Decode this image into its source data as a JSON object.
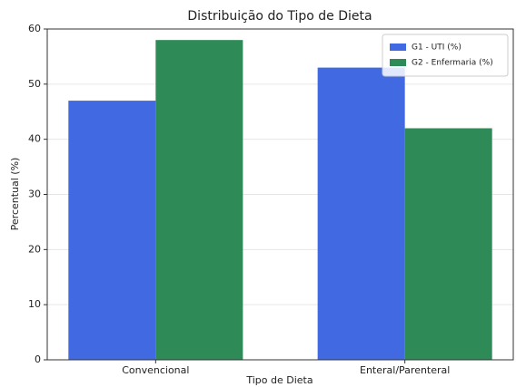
{
  "chart_data": {
    "type": "bar",
    "title": "Distribuição do Tipo de Dieta",
    "x_label": "Tipo de Dieta",
    "y_label": "Percentual (%)",
    "categories": [
      "Convencional",
      "Enteral/Parenteral"
    ],
    "series": [
      {
        "name": "G1 - UTI (%)",
        "color": "#4169e1",
        "values": [
          47,
          53
        ]
      },
      {
        "name": "G2 - Enfermaria (%)",
        "color": "#2e8b57",
        "values": [
          58,
          42
        ]
      }
    ],
    "ylim": [
      0,
      60
    ],
    "yticks": [
      0,
      10,
      20,
      30,
      40,
      50,
      60
    ],
    "grid": true,
    "legend": "upper right"
  }
}
